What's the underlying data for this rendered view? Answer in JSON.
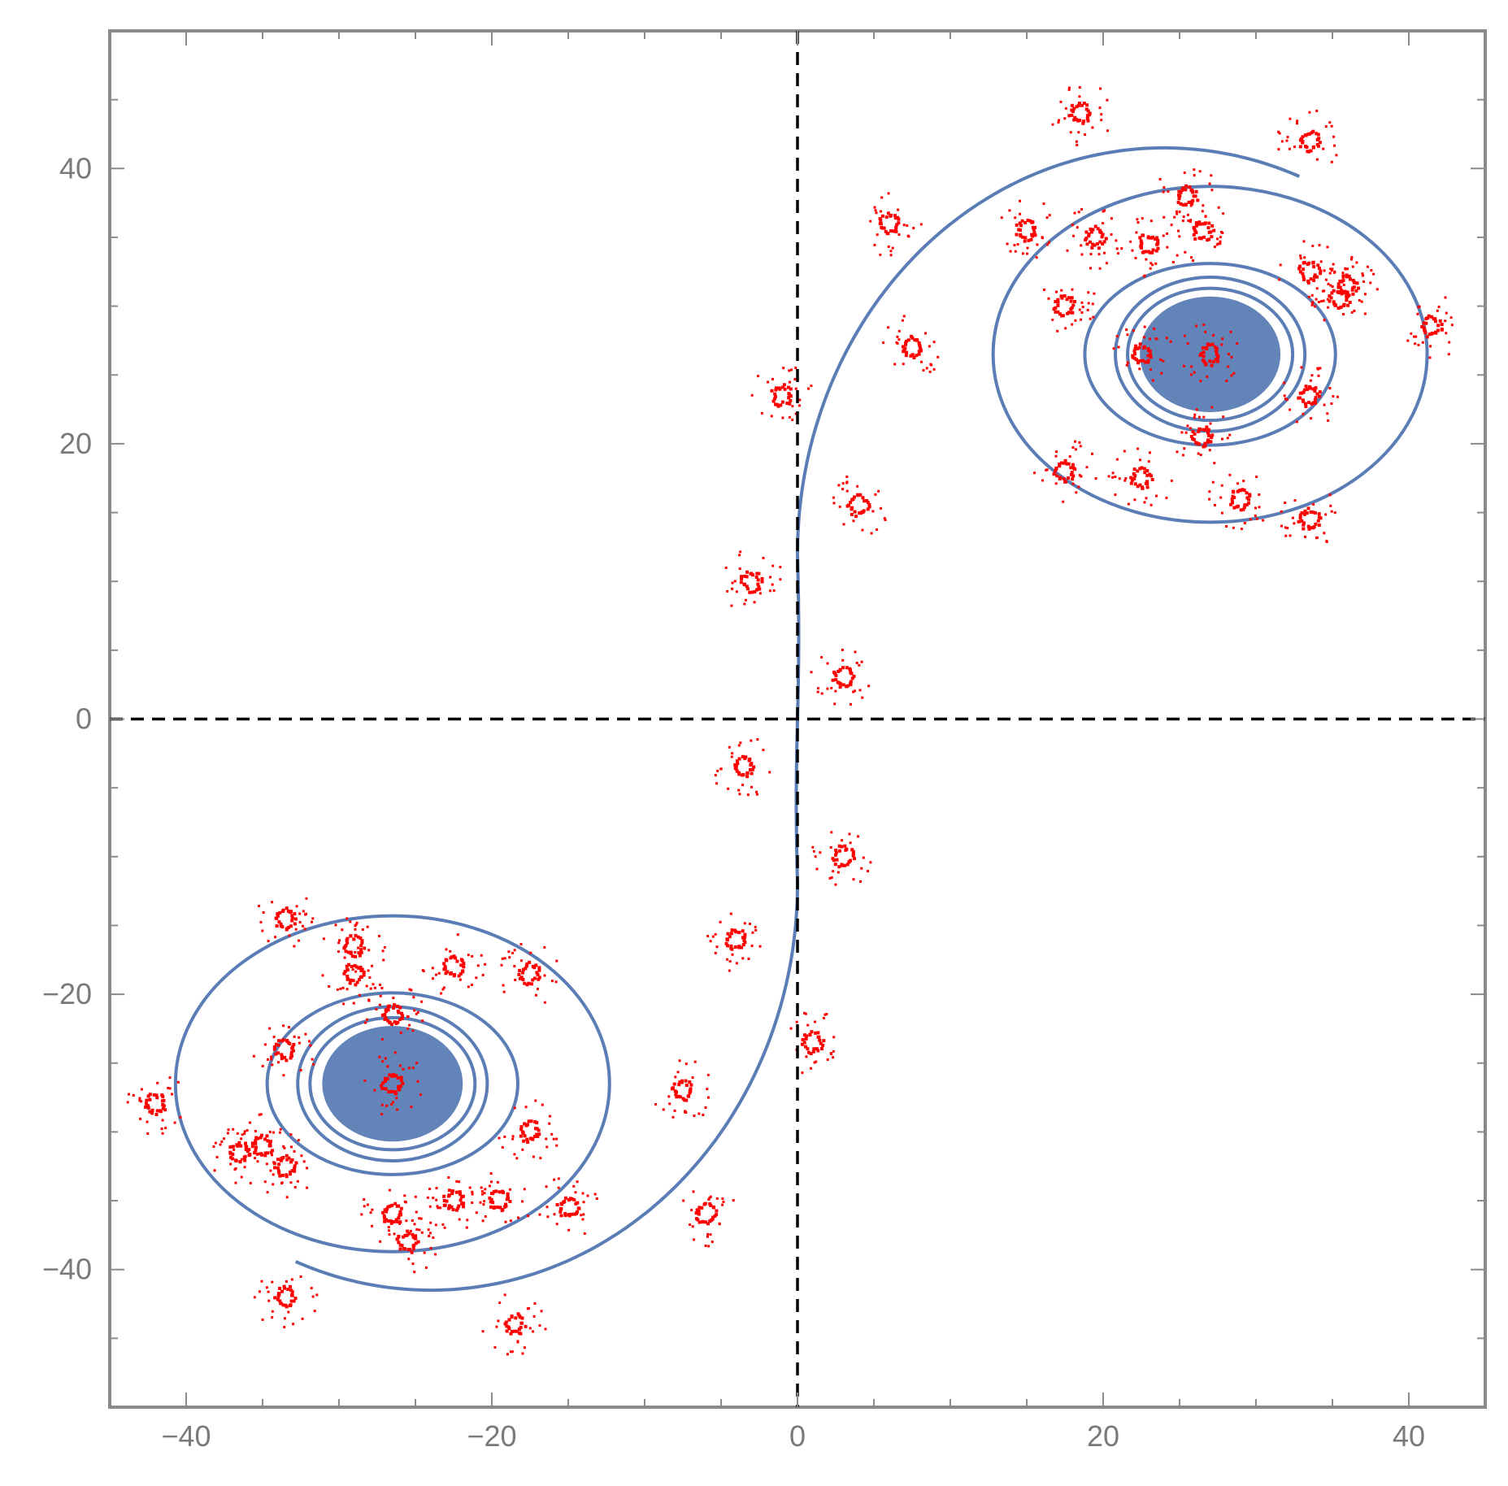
{
  "chart_data": {
    "type": "scatter",
    "title": "",
    "xlabel": "",
    "ylabel": "",
    "xlim": [
      -45,
      45
    ],
    "ylim": [
      -50,
      50
    ],
    "xticks": [
      -40,
      -20,
      0,
      20,
      40
    ],
    "yticks": [
      -40,
      -20,
      0,
      20,
      40
    ],
    "xtick_labels": [
      "−40",
      "−20",
      "0",
      "20",
      "40"
    ],
    "ytick_labels": [
      "−40",
      "−20",
      "0",
      "20",
      "40"
    ],
    "reference_lines": {
      "x": 0,
      "y": 0,
      "style": "dashed"
    },
    "grid": false,
    "legend": "none",
    "series": [
      {
        "kind": "curve",
        "description_color": "#5b7db5",
        "center_upper": [
          27,
          26.5
        ],
        "center_lower": [
          -26.5,
          -26.5
        ]
      },
      {
        "kind": "points",
        "color": "#ff0000",
        "points": [
          [
            18.5,
            44
          ],
          [
            33.5,
            42
          ],
          [
            25.5,
            38
          ],
          [
            26.5,
            35.5
          ],
          [
            6,
            36
          ],
          [
            15,
            35.5
          ],
          [
            19.5,
            35
          ],
          [
            23,
            34.5
          ],
          [
            33.5,
            32.5
          ],
          [
            36,
            31.5
          ],
          [
            35.5,
            30.5
          ],
          [
            17.5,
            30
          ],
          [
            41.5,
            28.5
          ],
          [
            7.5,
            27
          ],
          [
            22.5,
            26.5
          ],
          [
            27,
            26.5
          ],
          [
            -1,
            23.5
          ],
          [
            33.5,
            23.5
          ],
          [
            26.5,
            20.5
          ],
          [
            17.5,
            18
          ],
          [
            22.5,
            17.5
          ],
          [
            29,
            16
          ],
          [
            33.5,
            14.5
          ],
          [
            4,
            15.5
          ],
          [
            -3,
            10
          ],
          [
            3,
            3
          ],
          [
            -3.5,
            -3.5
          ],
          [
            3,
            -10
          ],
          [
            -4,
            -16
          ],
          [
            -33.5,
            -14.5
          ],
          [
            -29,
            -16.5
          ],
          [
            -29,
            -18.5
          ],
          [
            -22.5,
            -18
          ],
          [
            -17.5,
            -18.5
          ],
          [
            -26.5,
            -21.5
          ],
          [
            -33.5,
            -24
          ],
          [
            -26.5,
            -26.5
          ],
          [
            -42,
            -28
          ],
          [
            -17.5,
            -30
          ],
          [
            -35,
            -31
          ],
          [
            -36.5,
            -31.5
          ],
          [
            -33.5,
            -32.5
          ],
          [
            -22.5,
            -35
          ],
          [
            -19.5,
            -35
          ],
          [
            -26.5,
            -36
          ],
          [
            -15,
            -35.5
          ],
          [
            -6,
            -36
          ],
          [
            -25.5,
            -38
          ],
          [
            -33.5,
            -42
          ],
          [
            -18.5,
            -44
          ],
          [
            1,
            -23.5
          ],
          [
            -7.5,
            -27
          ]
        ]
      }
    ]
  }
}
